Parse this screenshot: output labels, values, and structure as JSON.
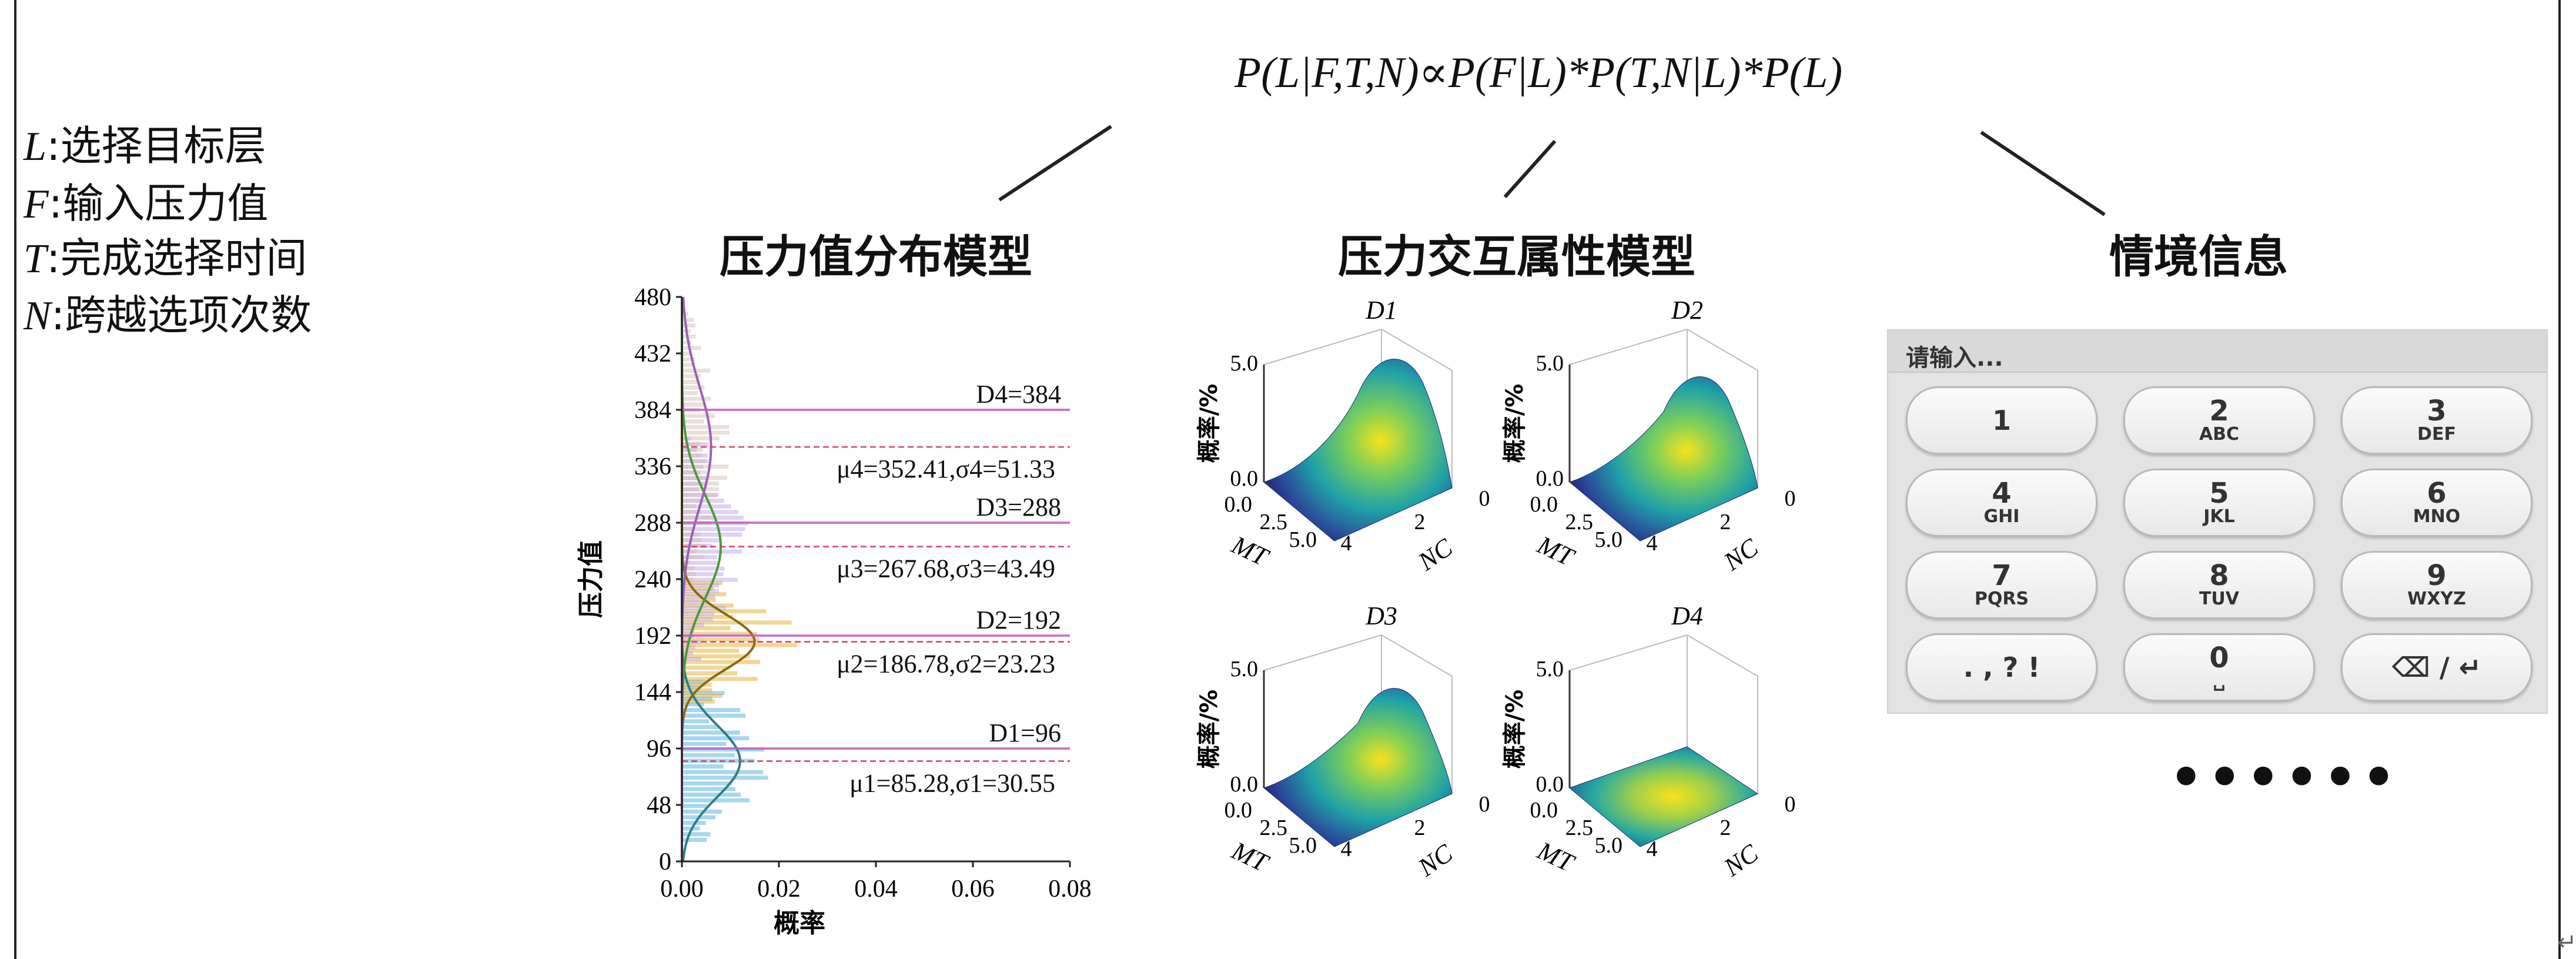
{
  "formula": "P(L|F,T,N)∝P(F|L)*P(T,N|L)*P(L)",
  "legend": [
    {
      "var": "L",
      "desc": ":选择目标层"
    },
    {
      "var": "F",
      "desc": ":输入压力值"
    },
    {
      "var": "T",
      "desc": ":完成选择时间"
    },
    {
      "var": "N",
      "desc": ":跨越选项次数"
    }
  ],
  "panels": {
    "pressure_dist_title": "压力值分布模型",
    "interaction_title": "压力交互属性模型",
    "context_title": "情境信息"
  },
  "chart_data": [
    {
      "type": "bar",
      "orientation": "horizontal",
      "title": "压力值分布模型",
      "xlabel": "概率",
      "ylabel": "压力值",
      "xlim": [
        0,
        0.08
      ],
      "ylim": [
        0,
        480
      ],
      "xticks": [
        "0.00",
        "0.02",
        "0.04",
        "0.06",
        "0.08"
      ],
      "yticks": [
        "0",
        "48",
        "96",
        "144",
        "192",
        "240",
        "288",
        "336",
        "384",
        "432",
        "480"
      ],
      "series": [
        {
          "color": "#3aa6d6",
          "mu": 85.28,
          "sigma": 30.55,
          "peak_prob": 0.012
        },
        {
          "color": "#e0a419",
          "mu": 186.78,
          "sigma": 23.23,
          "peak_prob": 0.015
        },
        {
          "color": "#b89be6",
          "mu": 267.68,
          "sigma": 43.49,
          "peak_prob": 0.008
        },
        {
          "color": "#cfb8b0",
          "mu": 352.41,
          "sigma": 51.33,
          "peak_prob": 0.006
        }
      ],
      "annotations": [
        {
          "label": "D4=384",
          "y": 384
        },
        {
          "label": "μ4=352.41,σ4=51.33",
          "y": 352.41
        },
        {
          "label": "D3=288",
          "y": 288
        },
        {
          "label": "μ3=267.68,σ3=43.49",
          "y": 267.68
        },
        {
          "label": "D2=192",
          "y": 192
        },
        {
          "label": "μ2=186.78,σ2=23.23",
          "y": 186.78
        },
        {
          "label": "D1=96",
          "y": 96
        },
        {
          "label": "μ1=85.28,σ1=30.55",
          "y": 85.28
        }
      ]
    },
    {
      "type": "surface3d",
      "plots": [
        {
          "title": "D1"
        },
        {
          "title": "D2"
        },
        {
          "title": "D3"
        },
        {
          "title": "D4"
        }
      ],
      "zlabel": "概率/%",
      "xlabel": "MT",
      "ylabel": "NC",
      "zticks": [
        "0.0",
        "5.0"
      ],
      "mt_ticks": [
        "0.0",
        "2.5",
        "5.0"
      ],
      "nc_ticks": [
        "4",
        "2",
        "0"
      ]
    }
  ],
  "keypad": {
    "placeholder": "请输入...",
    "keys": [
      {
        "num": "1",
        "sub": ""
      },
      {
        "num": "2",
        "sub": "ABC"
      },
      {
        "num": "3",
        "sub": "DEF"
      },
      {
        "num": "4",
        "sub": "GHI"
      },
      {
        "num": "5",
        "sub": "JKL"
      },
      {
        "num": "6",
        "sub": "MNO"
      },
      {
        "num": "7",
        "sub": "PQRS"
      },
      {
        "num": "8",
        "sub": "TUV"
      },
      {
        "num": "9",
        "sub": "WXYZ"
      },
      {
        "num": ". , ? !",
        "sub": ""
      },
      {
        "num": "0",
        "sub": "␣"
      },
      {
        "num": "⌫ / ↵",
        "sub": ""
      }
    ]
  },
  "ellipsis": "••••••"
}
